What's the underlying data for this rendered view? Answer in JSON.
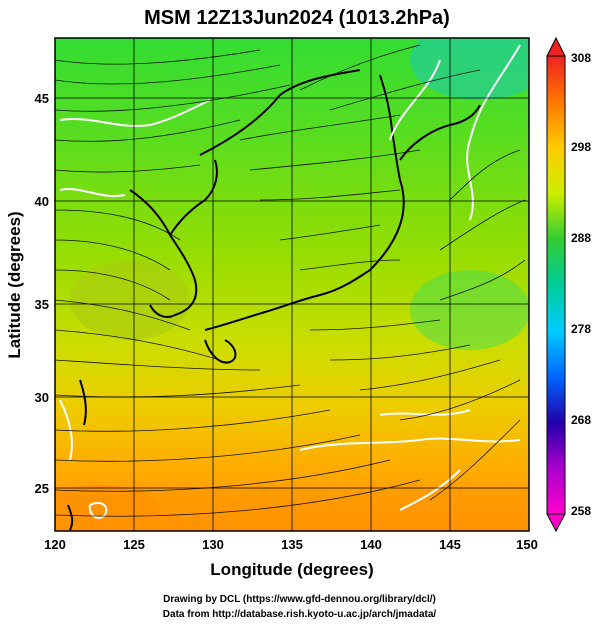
{
  "title": "MSM 12Z13Jun2024 (1013.2hPa)",
  "xlabel": "Longitude (degrees)",
  "ylabel": "Latitude  (degrees)",
  "x_ticks": [
    "120",
    "125",
    "130",
    "135",
    "140",
    "145",
    "150"
  ],
  "y_ticks": [
    "25",
    "30",
    "35",
    "40",
    "45"
  ],
  "colorbar": {
    "ticks": [
      "308",
      "298",
      "288",
      "278",
      "268",
      "258"
    ],
    "colors": [
      "#ee2222",
      "#ff7700",
      "#ffcc00",
      "#ddee00",
      "#88dd00",
      "#22cc22",
      "#00ccaa",
      "#00aaff",
      "#0044ff",
      "#2200aa",
      "#aa00cc",
      "#ff00cc"
    ]
  },
  "credits": {
    "line1": "Drawing by DCL (https://www.gfd-dennou.org/library/dcl/)",
    "line2": "Data from http://database.rish.kyoto-u.ac.jp/arch/jmadata/"
  }
}
